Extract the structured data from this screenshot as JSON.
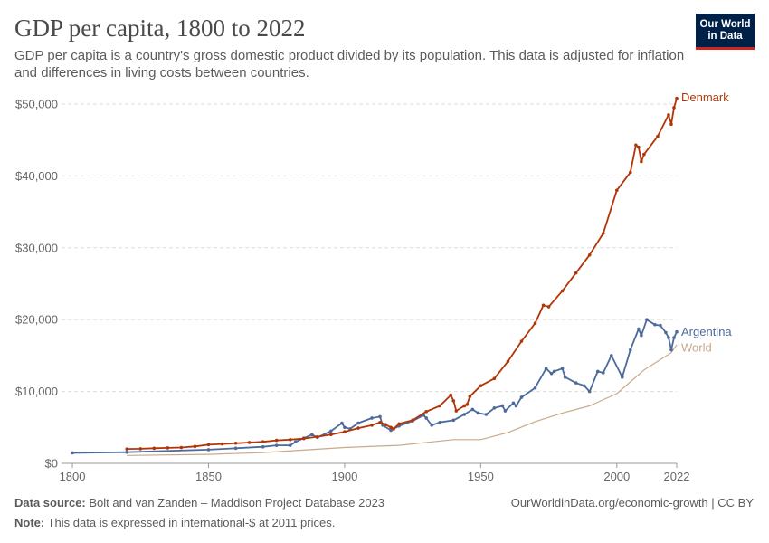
{
  "header": {
    "title": "GDP per capita, 1800 to 2022",
    "subtitle": "GDP per capita is a country's gross domestic product divided by its population. This data is adjusted for inflation and differences in living costs between countries.",
    "logo_line1": "Our World",
    "logo_line2": "in Data",
    "logo_bg": "#002147",
    "logo_accent": "#ce261e"
  },
  "footer": {
    "source_label": "Data source:",
    "source_text": "Bolt and van Zanden – Maddison Project Database 2023",
    "note_label": "Note:",
    "note_text": "This data is expressed in international-$ at 2011 prices.",
    "url_text": "OurWorldinData.org/economic-growth | CC BY"
  },
  "chart_data": {
    "type": "line",
    "title": "GDP per capita, 1800 to 2022",
    "xlim": [
      1796,
      2022
    ],
    "ylim": [
      0,
      50000
    ],
    "x_ticks": [
      1800,
      1850,
      1900,
      1950,
      2000,
      2022
    ],
    "y_ticks": [
      0,
      10000,
      20000,
      30000,
      40000,
      50000
    ],
    "y_tick_labels": [
      "$0",
      "$10,000",
      "$20,000",
      "$30,000",
      "$40,000",
      "$50,000"
    ],
    "grid": "horizontal-dashed",
    "legend": "right-of-lines",
    "series": [
      {
        "name": "Denmark",
        "color": "#b13507",
        "markers": true,
        "points": [
          [
            1820,
            2000
          ],
          [
            1825,
            2030
          ],
          [
            1830,
            2100
          ],
          [
            1835,
            2150
          ],
          [
            1840,
            2200
          ],
          [
            1845,
            2350
          ],
          [
            1850,
            2600
          ],
          [
            1855,
            2700
          ],
          [
            1860,
            2800
          ],
          [
            1865,
            2900
          ],
          [
            1870,
            3000
          ],
          [
            1875,
            3200
          ],
          [
            1880,
            3300
          ],
          [
            1885,
            3450
          ],
          [
            1890,
            3700
          ],
          [
            1895,
            4000
          ],
          [
            1900,
            4400
          ],
          [
            1905,
            4900
          ],
          [
            1910,
            5300
          ],
          [
            1913,
            5700
          ],
          [
            1915,
            5400
          ],
          [
            1917,
            5000
          ],
          [
            1918,
            4800
          ],
          [
            1920,
            5500
          ],
          [
            1925,
            6000
          ],
          [
            1930,
            7200
          ],
          [
            1935,
            8000
          ],
          [
            1939,
            9500
          ],
          [
            1940,
            8700
          ],
          [
            1941,
            7300
          ],
          [
            1944,
            8000
          ],
          [
            1945,
            8200
          ],
          [
            1946,
            9300
          ],
          [
            1950,
            10800
          ],
          [
            1955,
            11800
          ],
          [
            1960,
            14200
          ],
          [
            1965,
            17000
          ],
          [
            1970,
            19500
          ],
          [
            1973,
            22000
          ],
          [
            1975,
            21800
          ],
          [
            1980,
            24000
          ],
          [
            1985,
            26500
          ],
          [
            1990,
            29000
          ],
          [
            1995,
            32000
          ],
          [
            2000,
            38000
          ],
          [
            2005,
            40500
          ],
          [
            2007,
            44300
          ],
          [
            2008,
            44000
          ],
          [
            2009,
            42000
          ],
          [
            2010,
            43000
          ],
          [
            2015,
            45500
          ],
          [
            2019,
            48500
          ],
          [
            2020,
            47200
          ],
          [
            2021,
            49500
          ],
          [
            2022,
            50800
          ]
        ]
      },
      {
        "name": "Argentina",
        "color": "#4c6a9c",
        "markers": true,
        "points": [
          [
            1800,
            1450
          ],
          [
            1820,
            1550
          ],
          [
            1850,
            1900
          ],
          [
            1860,
            2100
          ],
          [
            1870,
            2300
          ],
          [
            1875,
            2500
          ],
          [
            1880,
            2500
          ],
          [
            1882,
            3000
          ],
          [
            1885,
            3500
          ],
          [
            1888,
            4000
          ],
          [
            1890,
            3600
          ],
          [
            1895,
            4500
          ],
          [
            1899,
            5600
          ],
          [
            1900,
            5000
          ],
          [
            1902,
            4800
          ],
          [
            1905,
            5600
          ],
          [
            1910,
            6300
          ],
          [
            1913,
            6500
          ],
          [
            1914,
            5300
          ],
          [
            1917,
            4600
          ],
          [
            1920,
            5200
          ],
          [
            1925,
            5900
          ],
          [
            1929,
            6700
          ],
          [
            1930,
            6300
          ],
          [
            1932,
            5300
          ],
          [
            1935,
            5700
          ],
          [
            1940,
            6000
          ],
          [
            1944,
            6800
          ],
          [
            1947,
            7500
          ],
          [
            1949,
            7000
          ],
          [
            1952,
            6800
          ],
          [
            1955,
            7700
          ],
          [
            1958,
            8000
          ],
          [
            1959,
            7300
          ],
          [
            1962,
            8400
          ],
          [
            1963,
            8000
          ],
          [
            1965,
            9200
          ],
          [
            1970,
            10500
          ],
          [
            1974,
            13200
          ],
          [
            1976,
            12500
          ],
          [
            1977,
            12800
          ],
          [
            1980,
            13200
          ],
          [
            1981,
            12000
          ],
          [
            1985,
            11200
          ],
          [
            1988,
            10800
          ],
          [
            1990,
            10000
          ],
          [
            1993,
            12800
          ],
          [
            1995,
            12600
          ],
          [
            1998,
            15000
          ],
          [
            2002,
            12000
          ],
          [
            2005,
            15800
          ],
          [
            2008,
            18700
          ],
          [
            2009,
            17800
          ],
          [
            2011,
            20000
          ],
          [
            2014,
            19300
          ],
          [
            2016,
            19200
          ],
          [
            2018,
            18200
          ],
          [
            2019,
            17500
          ],
          [
            2020,
            15800
          ],
          [
            2021,
            17500
          ],
          [
            2022,
            18300
          ]
        ]
      },
      {
        "name": "World",
        "color": "#c9a98c",
        "markers": false,
        "points": [
          [
            1820,
            1100
          ],
          [
            1850,
            1250
          ],
          [
            1870,
            1500
          ],
          [
            1900,
            2200
          ],
          [
            1913,
            2400
          ],
          [
            1920,
            2500
          ],
          [
            1940,
            3300
          ],
          [
            1950,
            3300
          ],
          [
            1960,
            4300
          ],
          [
            1970,
            5800
          ],
          [
            1980,
            7000
          ],
          [
            1990,
            8000
          ],
          [
            2000,
            9700
          ],
          [
            2010,
            13000
          ],
          [
            2020,
            15400
          ],
          [
            2022,
            16500
          ]
        ]
      }
    ]
  }
}
